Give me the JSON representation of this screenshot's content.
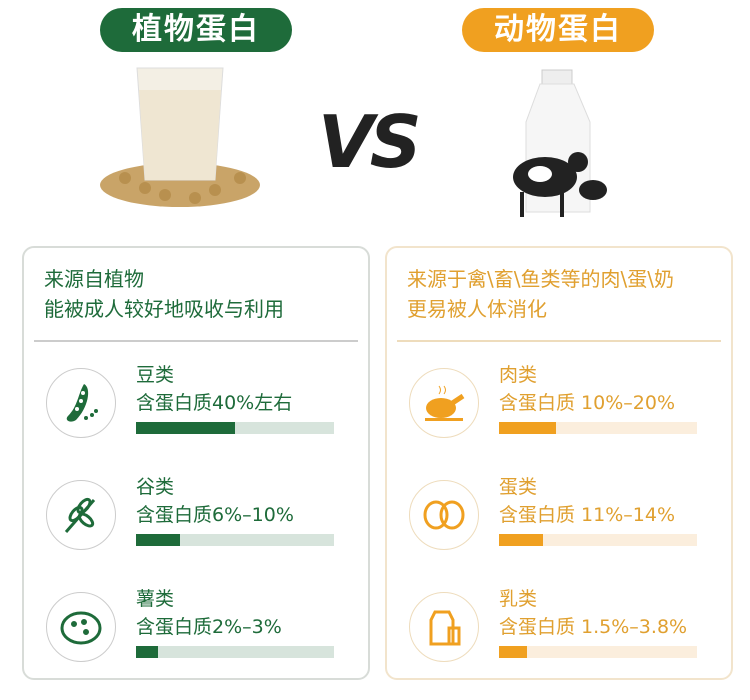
{
  "plant": {
    "title": "植物蛋白",
    "desc": [
      "来源自植物",
      "能被成人较好地吸收与利用"
    ],
    "items": [
      {
        "name": "豆类",
        "protein": "含蛋白质40%左右",
        "bar_percent": 50,
        "icon": "bean-pod-icon"
      },
      {
        "name": "谷类",
        "protein": "含蛋白质6%–10%",
        "bar_percent": 22,
        "icon": "wheat-icon"
      },
      {
        "name": "薯类",
        "protein": "含蛋白质2%–3%",
        "bar_percent": 11,
        "icon": "potato-icon"
      }
    ],
    "color": "#1e6b3a"
  },
  "vs": "VS",
  "animal": {
    "title": "动物蛋白",
    "desc": [
      "来源于禽\\畜\\鱼类等的肉\\蛋\\奶",
      "更易被人体消化"
    ],
    "items": [
      {
        "name": "肉类",
        "protein": "含蛋白质 10%–20%",
        "bar_percent": 29,
        "icon": "roast-chicken-icon"
      },
      {
        "name": "蛋类",
        "protein": "含蛋白质 11%–14%",
        "bar_percent": 22,
        "icon": "eggs-icon"
      },
      {
        "name": "乳类",
        "protein": "含蛋白质 1.5%–3.8%",
        "bar_percent": 14,
        "icon": "milk-carton-icon"
      }
    ],
    "color": "#f0a020"
  }
}
